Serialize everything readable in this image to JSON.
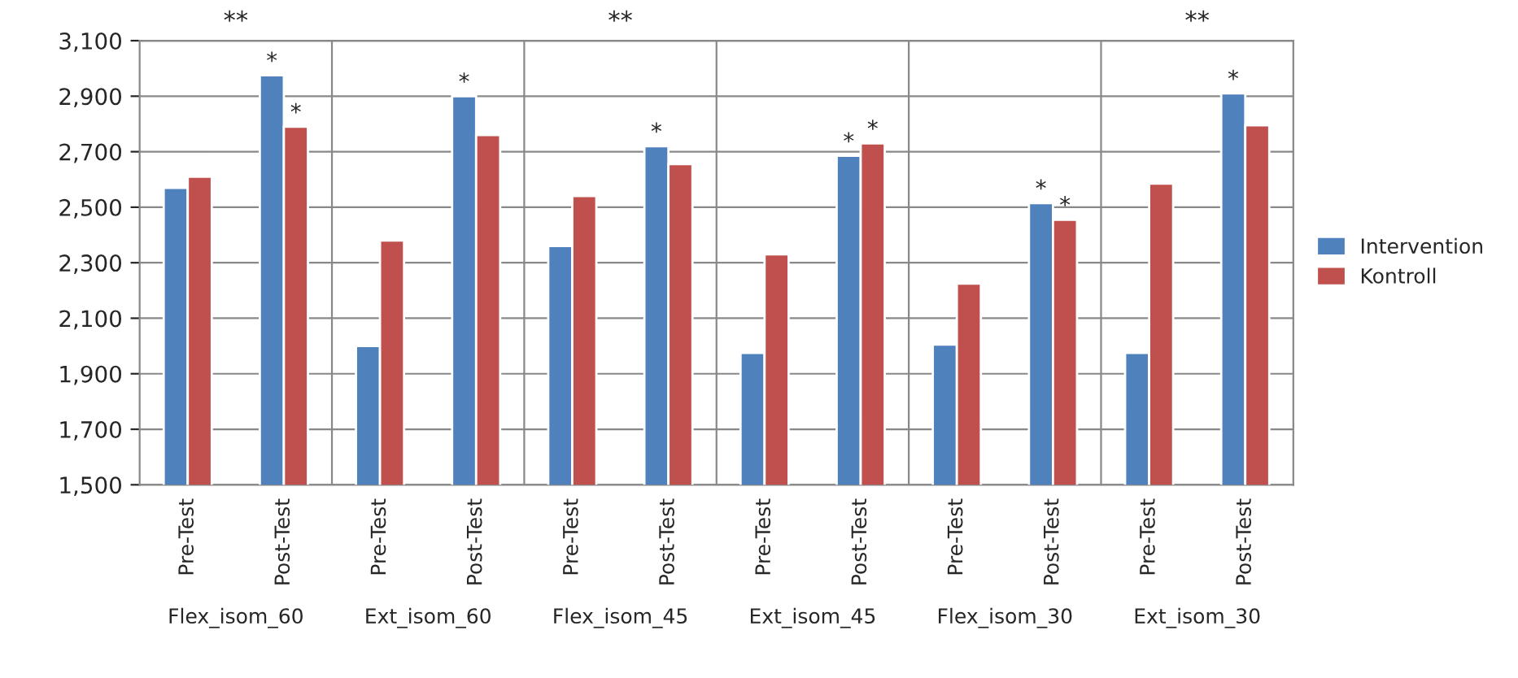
{
  "chart_data": {
    "type": "bar",
    "categories": [
      "Pre-Test",
      "Post-Test",
      "Pre-Test",
      "Post-Test",
      "Pre-Test",
      "Post-Test",
      "Pre-Test",
      "Post-Test",
      "Pre-Test",
      "Post-Test",
      "Pre-Test",
      "Post-Test"
    ],
    "series": [
      {
        "name": "Intervention",
        "color": "#4f81bd",
        "values": [
          2570,
          2975,
          2000,
          2900,
          2360,
          2720,
          1975,
          2685,
          2005,
          2515,
          1975,
          2910
        ],
        "value_labels": [
          null,
          "*",
          null,
          "*",
          null,
          "*",
          null,
          "*",
          null,
          "*",
          null,
          "*"
        ]
      },
      {
        "name": "Kontroll",
        "color": "#c0504d",
        "values": [
          2610,
          2790,
          2380,
          2760,
          2540,
          2655,
          2330,
          2730,
          2225,
          2455,
          2585,
          2795
        ],
        "value_labels": [
          null,
          "*",
          null,
          null,
          null,
          null,
          null,
          "*",
          null,
          "*",
          null,
          null
        ]
      }
    ],
    "annotations": [
      {
        "text": "**"
      },
      "Flex_isom_60",
      "Ext_isom_60",
      {
        "text": "**"
      },
      "Flex_isom_45",
      "Ext_isom_45",
      "Flex_isom_30",
      {
        "text": "**"
      },
      "Ext_isom_30"
    ],
    "ylim": [
      1500,
      3100
    ],
    "yticks": [
      {
        "value": 1500,
        "label": "1,500"
      },
      {
        "value": 1700,
        "label": "1,700"
      },
      {
        "value": 1900,
        "label": "1,900"
      },
      {
        "value": 2100,
        "label": "2,100"
      },
      {
        "value": 2300,
        "label": "2,300"
      },
      {
        "value": 2500,
        "label": "2,500"
      },
      {
        "value": 2700,
        "label": "2,700"
      },
      {
        "value": 2900,
        "label": "2,900"
      },
      {
        "value": 3100,
        "label": "3,100"
      }
    ],
    "grid": true,
    "legend": "right"
  }
}
